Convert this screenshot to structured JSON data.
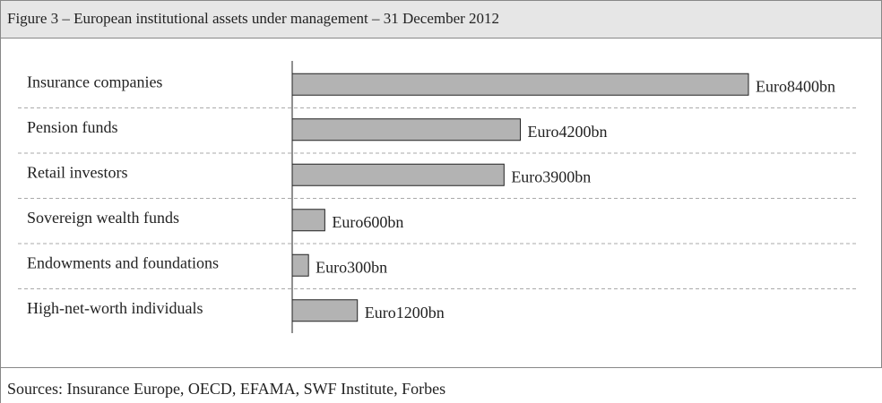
{
  "chart_data": {
    "type": "barh",
    "title": "Figure 3 – European institutional assets under management – 31 December 2012",
    "categories": [
      "Insurance companies",
      "Pension funds",
      "Retail investors",
      "Sovereign wealth funds",
      "Endowments and foundations",
      "High-net-worth individuals"
    ],
    "values": [
      8400,
      4200,
      3900,
      600,
      300,
      1200
    ],
    "value_labels": [
      "Euro8400bn",
      "Euro4200bn",
      "Euro3900bn",
      "Euro600bn",
      "Euro300bn",
      "Euro1200bn"
    ],
    "color": "#b3b3b3",
    "source": "Sources: Insurance Europe, OECD, EFAMA, SWF Institute, Forbes"
  }
}
